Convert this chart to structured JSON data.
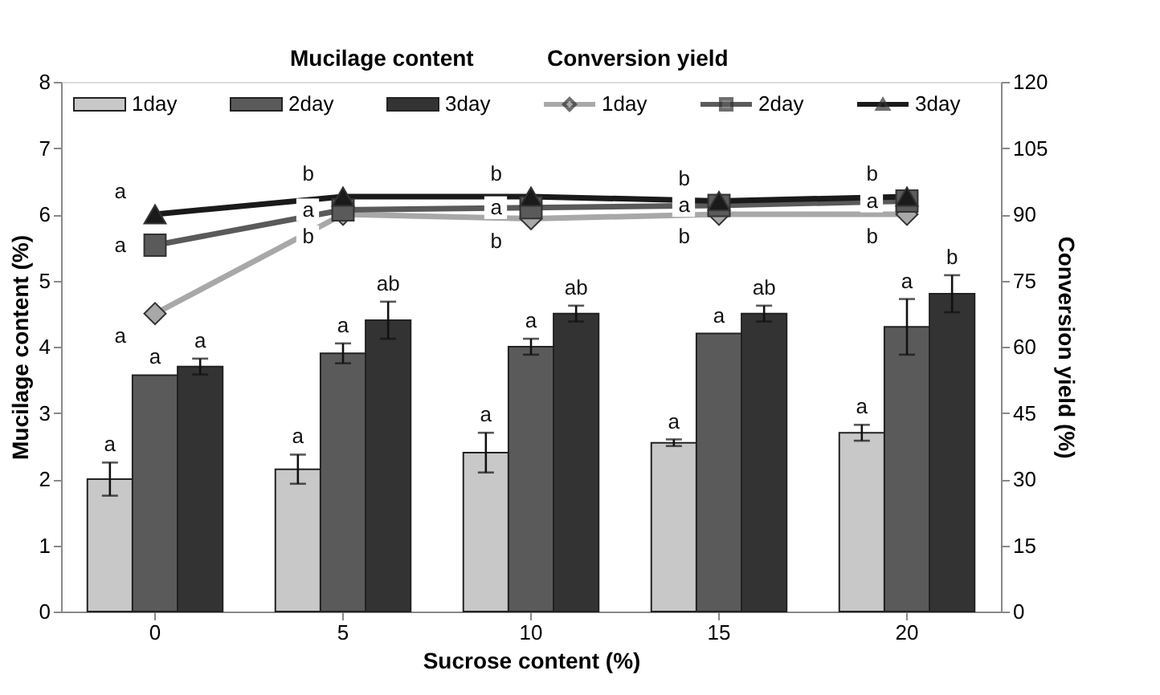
{
  "chart_data": {
    "type": "bar",
    "xlabel": "Sucrose content (%)",
    "ylabel": "Mucilage content (%)",
    "y2label": "Conversion yield (%)",
    "categories": [
      "0",
      "5",
      "10",
      "15",
      "20"
    ],
    "ylim": [
      0,
      8
    ],
    "yticks": [
      0,
      1,
      2,
      3,
      4,
      5,
      6,
      7,
      8
    ],
    "y2lim": [
      0,
      120
    ],
    "y2ticks": [
      0,
      15,
      30,
      45,
      60,
      75,
      90,
      105,
      120
    ],
    "annotations": [
      "Mucilage content",
      "Conversion yield"
    ],
    "legend": "top",
    "grid": false,
    "series": [
      {
        "name": "1day",
        "color": "#c8c8c8",
        "values": [
          2.0,
          2.15,
          2.4,
          2.55,
          2.7
        ],
        "errors": [
          0.25,
          0.22,
          0.3,
          0.05,
          0.12
        ],
        "value_labels": [
          "a",
          "a",
          "a",
          "a",
          "a"
        ]
      },
      {
        "name": "2day",
        "color": "#5a5a5a",
        "values": [
          3.57,
          3.9,
          4.0,
          4.2,
          4.3
        ],
        "errors": [
          null,
          0.15,
          0.12,
          null,
          0.42
        ],
        "value_labels": [
          "a",
          "a",
          "a",
          "a",
          "a"
        ]
      },
      {
        "name": "3day",
        "color": "#333333",
        "values": [
          3.7,
          4.4,
          4.5,
          4.5,
          4.8
        ],
        "errors": [
          0.12,
          0.28,
          0.12,
          0.12,
          0.28
        ],
        "value_labels": [
          "a",
          "ab",
          "ab",
          "ab",
          "b"
        ]
      },
      {
        "name": "1day",
        "type": "line",
        "axis": "y2",
        "marker": "diamond",
        "color": "#a8a8a8",
        "values": [
          67.5,
          90,
          89,
          90,
          90
        ],
        "value_labels": [
          "a",
          "b",
          "b",
          "b",
          "b"
        ]
      },
      {
        "name": "2day",
        "type": "line",
        "axis": "y2",
        "marker": "square",
        "color": "#5a5a5a",
        "values": [
          83,
          91,
          91.5,
          92,
          93
        ],
        "value_labels": [
          "a",
          "a",
          "a",
          "a",
          "a"
        ]
      },
      {
        "name": "3day",
        "type": "line",
        "axis": "y2",
        "marker": "triangle",
        "color": "#1a1a1a",
        "values": [
          90,
          94,
          94,
          93,
          94
        ],
        "value_labels": [
          "a",
          "b",
          "b",
          "b",
          "b"
        ]
      }
    ]
  }
}
